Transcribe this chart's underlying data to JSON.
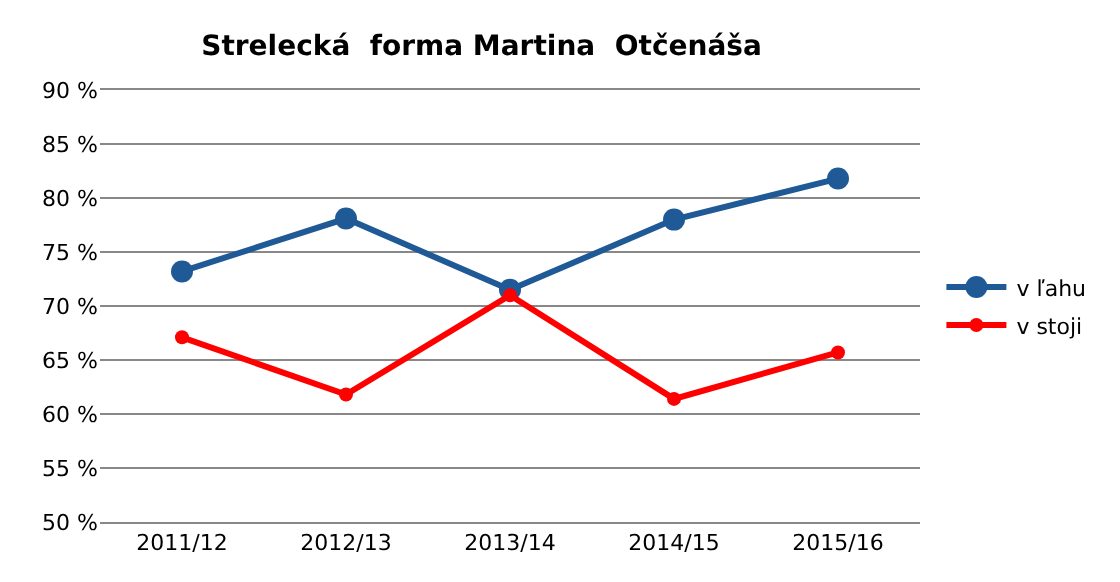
{
  "chart_data": {
    "type": "line",
    "title": "Strelecká  forma Martina  Otčenáša",
    "categories": [
      "2011/12",
      "2012/13",
      "2013/14",
      "2014/15",
      "2015/16"
    ],
    "series": [
      {
        "name": "v ľahu",
        "color": "#1f5a96",
        "values": [
          73.2,
          78.1,
          71.5,
          78.0,
          81.8
        ]
      },
      {
        "name": "v stoji",
        "color": "#ff0000",
        "values": [
          67.1,
          61.8,
          71.0,
          61.4,
          65.7
        ]
      }
    ],
    "ylim": [
      50,
      90
    ],
    "yticks": [
      {
        "value": 50,
        "label": "50 %"
      },
      {
        "value": 55,
        "label": "55 %"
      },
      {
        "value": 60,
        "label": "60 %"
      },
      {
        "value": 65,
        "label": "65 %"
      },
      {
        "value": 70,
        "label": "70 %"
      },
      {
        "value": 75,
        "label": "75 %"
      },
      {
        "value": 80,
        "label": "80 %"
      },
      {
        "value": 85,
        "label": "85 %"
      },
      {
        "value": 90,
        "label": "90 %"
      }
    ],
    "grid": "y",
    "legend": "right",
    "marker": "circle",
    "line_style": "solid"
  }
}
